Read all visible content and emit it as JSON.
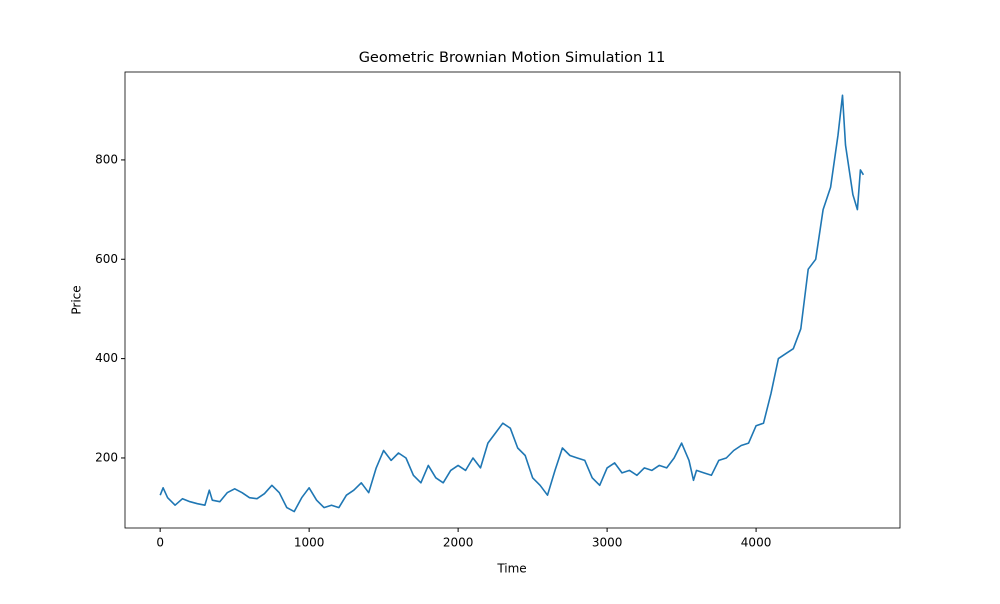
{
  "chart_data": {
    "type": "line",
    "title": "Geometric Brownian Motion Simulation 11",
    "x_label": "Time",
    "y_label": "Price",
    "x": [
      0,
      20,
      50,
      100,
      150,
      200,
      250,
      300,
      330,
      350,
      400,
      450,
      500,
      550,
      600,
      650,
      700,
      750,
      800,
      850,
      900,
      950,
      1000,
      1050,
      1100,
      1150,
      1200,
      1250,
      1300,
      1350,
      1400,
      1450,
      1500,
      1550,
      1600,
      1650,
      1700,
      1750,
      1800,
      1850,
      1900,
      1950,
      2000,
      2050,
      2100,
      2150,
      2200,
      2250,
      2300,
      2350,
      2400,
      2450,
      2500,
      2550,
      2600,
      2650,
      2700,
      2750,
      2800,
      2850,
      2900,
      2950,
      3000,
      3050,
      3100,
      3150,
      3200,
      3250,
      3300,
      3350,
      3400,
      3450,
      3500,
      3550,
      3580,
      3600,
      3650,
      3700,
      3750,
      3800,
      3850,
      3900,
      3950,
      4000,
      4050,
      4100,
      4150,
      4200,
      4250,
      4300,
      4350,
      4400,
      4450,
      4500,
      4550,
      4580,
      4600,
      4650,
      4680,
      4700,
      4720
    ],
    "series": [
      {
        "name": "Price",
        "color": "#1f77b4",
        "values": [
          125,
          140,
          120,
          105,
          118,
          112,
          108,
          105,
          135,
          115,
          112,
          130,
          138,
          130,
          120,
          118,
          128,
          145,
          130,
          100,
          92,
          120,
          140,
          115,
          100,
          105,
          100,
          125,
          135,
          150,
          130,
          180,
          215,
          195,
          210,
          200,
          165,
          150,
          185,
          160,
          150,
          175,
          185,
          175,
          200,
          180,
          230,
          250,
          270,
          260,
          220,
          205,
          160,
          145,
          125,
          175,
          220,
          205,
          200,
          195,
          160,
          145,
          180,
          190,
          170,
          175,
          165,
          180,
          175,
          185,
          180,
          200,
          230,
          195,
          155,
          175,
          170,
          165,
          195,
          200,
          215,
          225,
          230,
          265,
          270,
          330,
          400,
          410,
          420,
          460,
          580,
          600,
          700,
          745,
          850,
          930,
          830,
          730,
          700,
          780,
          770
        ]
      }
    ],
    "xlim": [
      -236,
      4966
    ],
    "xticks": [
      0,
      1000,
      2000,
      3000,
      4000
    ],
    "ylim": [
      59,
      977
    ],
    "yticks": [
      200,
      400,
      600,
      800
    ],
    "grid": false
  }
}
